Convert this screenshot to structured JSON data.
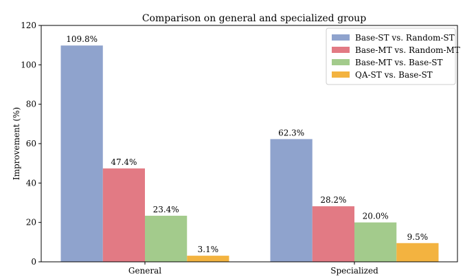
{
  "chart_data": {
    "type": "bar",
    "title": "Comparison on general and specialized group",
    "xlabel": "",
    "ylabel": "Improvement (%)",
    "ylim": [
      0,
      120
    ],
    "yticks": [
      0,
      20,
      40,
      60,
      80,
      100,
      120
    ],
    "categories": [
      "General",
      "Specialized"
    ],
    "legend_position": "top-right",
    "grid": false,
    "series": [
      {
        "name": "Base-ST vs. Random-ST",
        "color": "#8fa3cd",
        "values": [
          109.8,
          62.3
        ],
        "labels": [
          "109.8%",
          "62.3%"
        ]
      },
      {
        "name": "Base-MT vs. Random-MT",
        "color": "#e27a84",
        "values": [
          47.4,
          28.2
        ],
        "labels": [
          "47.4%",
          "28.2%"
        ]
      },
      {
        "name": "Base-MT vs. Base-ST",
        "color": "#a3cb8c",
        "values": [
          23.4,
          20.0
        ],
        "labels": [
          "23.4%",
          "20.0%"
        ]
      },
      {
        "name": "QA-ST vs. Base-ST",
        "color": "#f3b340",
        "values": [
          3.1,
          9.5
        ],
        "labels": [
          "3.1%",
          "9.5%"
        ]
      }
    ]
  }
}
